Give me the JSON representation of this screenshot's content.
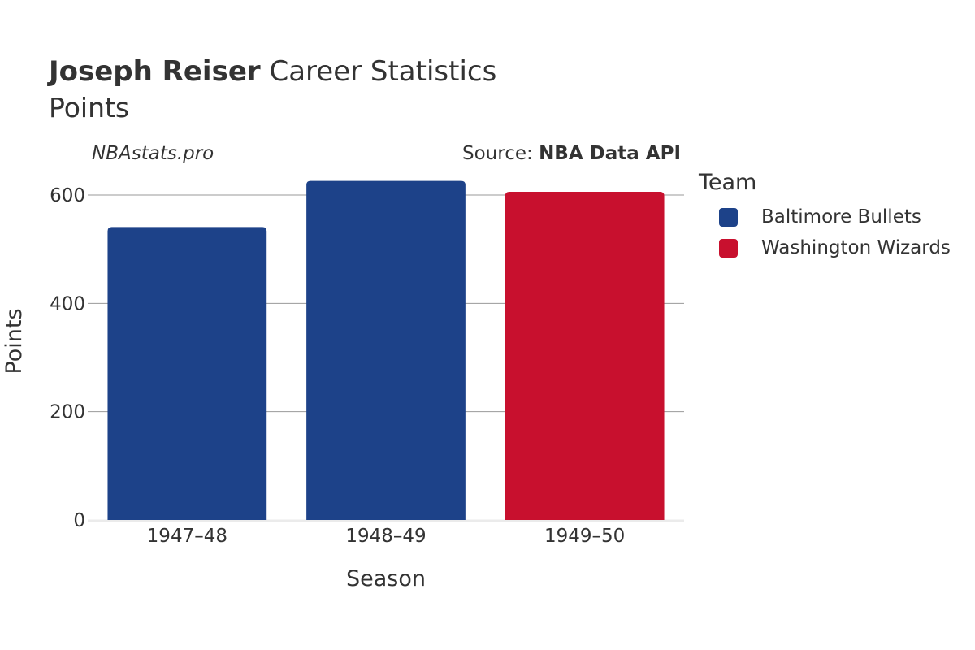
{
  "header": {
    "player_name": "Joseph Reiser",
    "title_suffix": "Career Statistics",
    "subtitle": "Points"
  },
  "watermark": "NBAstats.pro",
  "source": {
    "prefix": "Source: ",
    "name": "NBA Data API"
  },
  "legend": {
    "title": "Team",
    "items": [
      {
        "label": "Baltimore Bullets",
        "color": "#1d4289"
      },
      {
        "label": "Washington Wizards",
        "color": "#c8102e"
      }
    ]
  },
  "chart_data": {
    "type": "bar",
    "categories": [
      "1947–48",
      "1948–49",
      "1949–50"
    ],
    "values": [
      541,
      626,
      606
    ],
    "teams": [
      "Baltimore Bullets",
      "Baltimore Bullets",
      "Washington Wizards"
    ],
    "colors": [
      "#1d4289",
      "#1d4289",
      "#c8102e"
    ],
    "xlabel": "Season",
    "ylabel": "Points",
    "ylim": [
      0,
      660
    ],
    "yticks": [
      0,
      200,
      400,
      600
    ],
    "grid": true,
    "legend_position": "right"
  }
}
